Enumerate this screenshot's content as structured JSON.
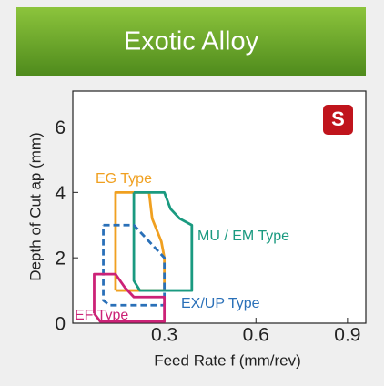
{
  "chart_data": {
    "type": "region",
    "title": "Exotic Alloy",
    "badge": "S",
    "x_label": "Feed Rate f (mm/rev)",
    "y_label": "Depth of Cut ap (mm)",
    "xlim": [
      0,
      0.96
    ],
    "ylim": [
      0,
      7.1
    ],
    "xticks": [
      {
        "value": 0.3,
        "label": "0.3"
      },
      {
        "value": 0.6,
        "label": "0.6"
      },
      {
        "value": 0.9,
        "label": "0.9"
      }
    ],
    "yticks": [
      0,
      2,
      4,
      6
    ],
    "series": [
      {
        "name": "EG Type",
        "color": "#f0a020",
        "dashed": false,
        "x": [
          0.14,
          0.14,
          0.25,
          0.26,
          0.29,
          0.3,
          0.3,
          0.14
        ],
        "y": [
          1.0,
          4.0,
          4.0,
          3.2,
          2.5,
          2.0,
          1.0,
          1.0
        ]
      },
      {
        "name": "MU / EM Type",
        "color": "#1a9a80",
        "dashed": false,
        "x": [
          0.2,
          0.3,
          0.32,
          0.35,
          0.39,
          0.39,
          0.22,
          0.2,
          0.2
        ],
        "y": [
          4.0,
          4.0,
          3.5,
          3.2,
          3.0,
          1.0,
          1.0,
          1.3,
          4.0
        ]
      },
      {
        "name": "EX/UP Type",
        "color": "#2a70b8",
        "dashed": true,
        "x": [
          0.1,
          0.2,
          0.3,
          0.3,
          0.12,
          0.1,
          0.1
        ],
        "y": [
          3.0,
          3.0,
          2.0,
          0.55,
          0.55,
          0.7,
          3.0
        ]
      },
      {
        "name": "EF Type",
        "color": "#cc2277",
        "dashed": false,
        "x": [
          0.07,
          0.07,
          0.14,
          0.17,
          0.2,
          0.3,
          0.3,
          0.09,
          0.07
        ],
        "y": [
          0.3,
          1.5,
          1.5,
          1.1,
          0.8,
          0.8,
          0.05,
          0.05,
          0.3
        ]
      }
    ]
  }
}
